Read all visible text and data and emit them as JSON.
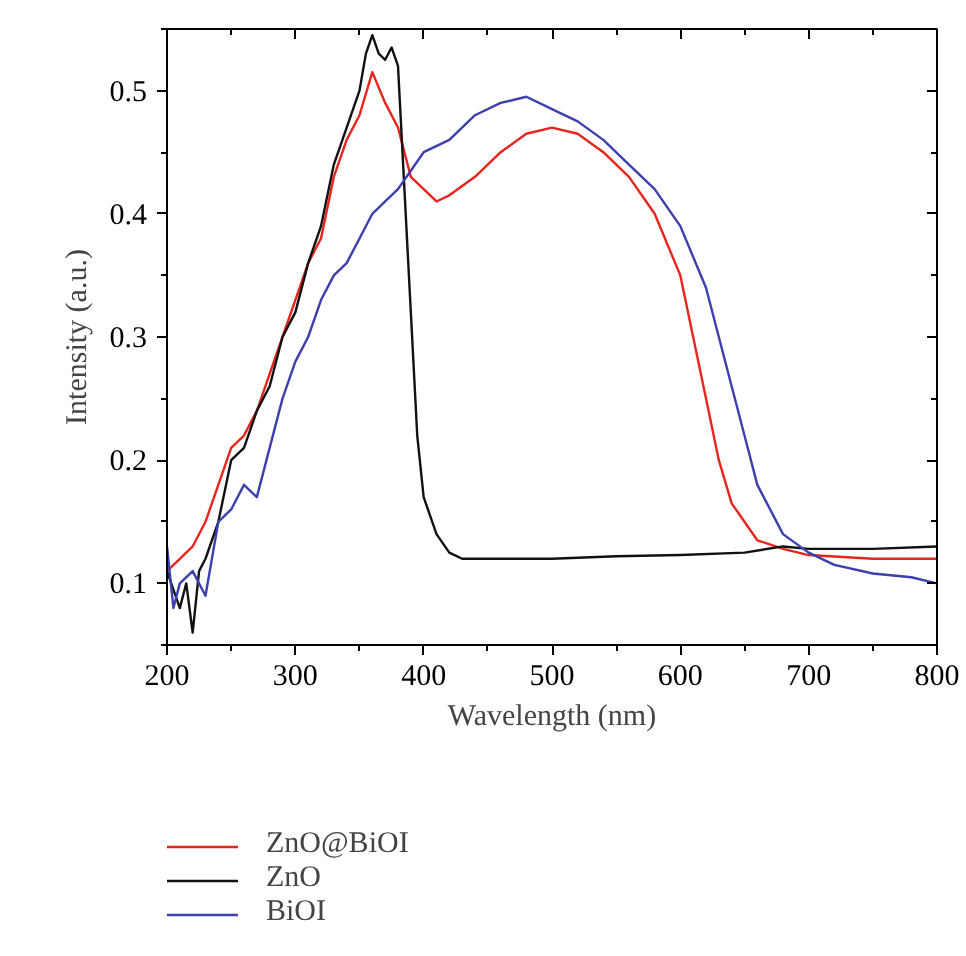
{
  "chart_data": {
    "type": "line",
    "xlabel": "Wavelength (nm)",
    "ylabel": "Intensity (a.u.)",
    "xlim": [
      200,
      800
    ],
    "ylim": [
      0.05,
      0.55
    ],
    "xticks": [
      200,
      300,
      400,
      500,
      600,
      700,
      800
    ],
    "yticks": [
      0.1,
      0.2,
      0.3,
      0.4,
      0.5
    ],
    "grid": false,
    "legend": "bottom",
    "line_style": "solid",
    "marker": "none",
    "series": [
      {
        "name": "ZnO@BiOI",
        "color": "#e8251c",
        "x": [
          200,
          210,
          220,
          230,
          240,
          250,
          260,
          270,
          280,
          290,
          300,
          310,
          320,
          330,
          340,
          350,
          360,
          370,
          380,
          390,
          400,
          410,
          420,
          440,
          460,
          480,
          500,
          520,
          540,
          560,
          580,
          600,
          610,
          620,
          630,
          640,
          660,
          680,
          700,
          750,
          800
        ],
        "values": [
          0.11,
          0.12,
          0.13,
          0.15,
          0.18,
          0.21,
          0.22,
          0.24,
          0.27,
          0.3,
          0.33,
          0.36,
          0.38,
          0.43,
          0.46,
          0.48,
          0.515,
          0.49,
          0.47,
          0.43,
          0.42,
          0.41,
          0.415,
          0.43,
          0.45,
          0.465,
          0.47,
          0.465,
          0.45,
          0.43,
          0.4,
          0.35,
          0.3,
          0.25,
          0.2,
          0.165,
          0.135,
          0.128,
          0.123,
          0.12,
          0.12
        ]
      },
      {
        "name": "ZnO",
        "color": "#111111",
        "x": [
          200,
          210,
          215,
          220,
          225,
          230,
          240,
          250,
          260,
          270,
          280,
          290,
          300,
          310,
          320,
          330,
          340,
          350,
          355,
          360,
          365,
          370,
          375,
          380,
          385,
          390,
          395,
          400,
          410,
          420,
          430,
          450,
          500,
          550,
          600,
          650,
          680,
          700,
          750,
          800
        ],
        "values": [
          0.11,
          0.08,
          0.1,
          0.06,
          0.11,
          0.12,
          0.15,
          0.2,
          0.21,
          0.24,
          0.26,
          0.3,
          0.32,
          0.36,
          0.39,
          0.44,
          0.47,
          0.5,
          0.53,
          0.545,
          0.53,
          0.525,
          0.535,
          0.52,
          0.42,
          0.32,
          0.22,
          0.17,
          0.14,
          0.125,
          0.12,
          0.12,
          0.12,
          0.122,
          0.123,
          0.125,
          0.13,
          0.128,
          0.128,
          0.13
        ]
      },
      {
        "name": "BiOI",
        "color": "#3c3fae",
        "x": [
          200,
          205,
          210,
          220,
          230,
          240,
          250,
          260,
          270,
          280,
          290,
          300,
          310,
          320,
          330,
          340,
          350,
          360,
          370,
          380,
          400,
          420,
          440,
          460,
          480,
          500,
          520,
          540,
          560,
          580,
          600,
          620,
          640,
          650,
          660,
          680,
          700,
          720,
          750,
          780,
          800
        ],
        "values": [
          0.13,
          0.08,
          0.1,
          0.11,
          0.09,
          0.15,
          0.16,
          0.18,
          0.17,
          0.21,
          0.25,
          0.28,
          0.3,
          0.33,
          0.35,
          0.36,
          0.38,
          0.4,
          0.41,
          0.42,
          0.45,
          0.46,
          0.48,
          0.49,
          0.495,
          0.485,
          0.475,
          0.46,
          0.44,
          0.42,
          0.39,
          0.34,
          0.26,
          0.22,
          0.18,
          0.14,
          0.125,
          0.115,
          0.108,
          0.105,
          0.1
        ]
      }
    ]
  }
}
